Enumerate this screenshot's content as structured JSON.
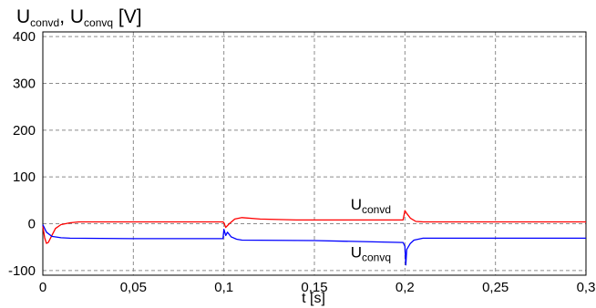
{
  "chart_data": {
    "type": "line",
    "title": {
      "main": "U",
      "sub1": "convd",
      "sep": ", U",
      "sub2": "convq",
      "unit": " [V]"
    },
    "xlabel": "t [s]",
    "ylabel": "",
    "xlim": [
      0,
      0.3
    ],
    "ylim": [
      -110,
      410
    ],
    "x_ticks": [
      0,
      0.05,
      0.1,
      0.15,
      0.2,
      0.25,
      0.3
    ],
    "x_tick_labels": [
      "0",
      "0,05",
      "0,1",
      "0,15",
      "0,2",
      "0,25",
      "0,3"
    ],
    "y_ticks": [
      400,
      300,
      200,
      100,
      0,
      -100
    ],
    "y_tick_labels": [
      "400",
      "300",
      "200",
      "100",
      "0",
      "-100"
    ],
    "grid": true,
    "series": [
      {
        "name": "convd",
        "color": "#ff0000",
        "x": [
          0,
          0.001,
          0.002,
          0.003,
          0.005,
          0.007,
          0.01,
          0.015,
          0.02,
          0.05,
          0.0995,
          0.1,
          0.101,
          0.103,
          0.106,
          0.11,
          0.12,
          0.14,
          0.199,
          0.2,
          0.201,
          0.203,
          0.206,
          0.21,
          0.25,
          0.3
        ],
        "y": [
          -5,
          -30,
          -42,
          -40,
          -25,
          -10,
          -2,
          2,
          4,
          4,
          4,
          2,
          -8,
          0,
          10,
          13,
          10,
          8,
          8,
          28,
          22,
          12,
          5,
          4,
          4,
          4
        ]
      },
      {
        "name": "convq",
        "color": "#0000ff",
        "x": [
          0,
          0.002,
          0.005,
          0.01,
          0.015,
          0.05,
          0.0995,
          0.1,
          0.101,
          0.102,
          0.104,
          0.107,
          0.11,
          0.15,
          0.199,
          0.2,
          0.2005,
          0.201,
          0.203,
          0.205,
          0.21,
          0.25,
          0.3
        ],
        "y": [
          -2,
          -18,
          -27,
          -30,
          -31,
          -32,
          -32,
          -12,
          -25,
          -18,
          -28,
          -33,
          -35,
          -36,
          -40,
          -48,
          -88,
          -55,
          -42,
          -35,
          -31,
          -31,
          -31
        ]
      }
    ],
    "annotations": [
      {
        "main": "U",
        "sub": "convd",
        "x": 0.17,
        "y": 30
      },
      {
        "main": "U",
        "sub": "convq",
        "x": 0.17,
        "y": -72
      }
    ]
  }
}
